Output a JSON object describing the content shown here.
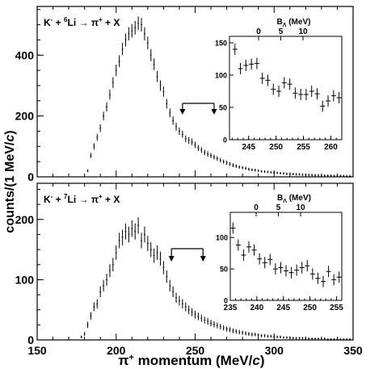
{
  "figure": {
    "ylabel_main": "counts/(1 MeV/",
    "ylabel_main_italic": "c",
    "ylabel_main_end": ")",
    "xlabel_pre": "π",
    "xlabel_sup": "+",
    "xlabel_mid": " momentum (MeV/",
    "xlabel_italic": "c",
    "xlabel_end": ")"
  },
  "chart_data": [
    {
      "type": "scatter",
      "panel": "top",
      "reaction": {
        "k": "K",
        "k_sup": "-",
        "plus": " + ",
        "a": "6",
        "nucleus": "Li",
        "arrow": " → ",
        "pi": "π",
        "pi_sup": "+",
        "end": " + X"
      },
      "xlim": [
        150,
        350
      ],
      "ylim": [
        0,
        560
      ],
      "xticks": [
        150,
        200,
        250,
        300,
        350
      ],
      "yticks": [
        0,
        200,
        400
      ],
      "x": [
        182,
        184,
        186,
        188,
        190,
        192,
        194,
        196,
        198,
        200,
        202,
        204,
        206,
        208,
        210,
        212,
        214,
        216,
        218,
        220,
        222,
        224,
        226,
        228,
        230,
        232,
        234,
        236,
        238,
        240,
        242,
        244,
        246,
        248,
        250,
        252,
        254,
        256,
        258,
        260,
        262,
        264,
        266,
        268,
        270,
        272,
        274,
        276,
        278,
        280,
        282,
        284,
        286,
        288,
        290,
        292,
        294,
        296,
        298,
        300,
        302,
        304,
        306,
        308,
        310,
        312,
        314,
        316,
        318,
        320,
        322,
        324,
        326,
        328,
        330,
        332,
        334,
        336,
        338,
        340,
        342,
        344,
        346,
        348
      ],
      "values": [
        20,
        70,
        100,
        130,
        160,
        200,
        230,
        270,
        310,
        350,
        380,
        420,
        450,
        470,
        480,
        490,
        505,
        500,
        470,
        440,
        400,
        370,
        330,
        300,
        280,
        240,
        210,
        185,
        165,
        150,
        140,
        125,
        120,
        115,
        105,
        95,
        88,
        80,
        75,
        70,
        65,
        60,
        55,
        50,
        46,
        42,
        38,
        35,
        32,
        30,
        28,
        25,
        23,
        22,
        20,
        18,
        17,
        16,
        15,
        14,
        13,
        12,
        11,
        10,
        10,
        9,
        8,
        8,
        7,
        7,
        6,
        6,
        5,
        5,
        5,
        4,
        4,
        4,
        3,
        3,
        3,
        3,
        2,
        2
      ],
      "window_arrow": {
        "from": 242,
        "to": 262
      },
      "inset": {
        "type": "scatter",
        "top_label": "B",
        "top_label_sub": "Λ",
        "top_label_end": " (MeV)",
        "top_ticks": [
          0,
          5,
          10
        ],
        "xlim": [
          241.5,
          262
        ],
        "ylim": [
          0,
          160
        ],
        "xticks": [
          245,
          250,
          255,
          260
        ],
        "yticks": [
          0,
          50,
          100,
          150
        ],
        "x": [
          242.5,
          243.5,
          244.5,
          245.5,
          246.5,
          247.5,
          248.5,
          249.5,
          250.5,
          251.5,
          252.5,
          253.5,
          254.5,
          255.5,
          256.5,
          257.5,
          258.5,
          259.5,
          260.5,
          261.5
        ],
        "values": [
          140,
          110,
          115,
          117,
          118,
          95,
          92,
          78,
          75,
          88,
          86,
          72,
          70,
          70,
          75,
          71,
          52,
          60,
          68,
          65
        ]
      }
    },
    {
      "type": "scatter",
      "panel": "bottom",
      "reaction": {
        "k": "K",
        "k_sup": "-",
        "plus": " + ",
        "a": "7",
        "nucleus": "Li",
        "arrow": " → ",
        "pi": "π",
        "pi_sup": "+",
        "end": " + X"
      },
      "xlim": [
        150,
        350
      ],
      "ylim": [
        0,
        260
      ],
      "xticks": [
        150,
        200,
        250,
        300,
        350
      ],
      "yticks": [
        0,
        100,
        200
      ],
      "x": [
        178,
        180,
        182,
        184,
        186,
        188,
        190,
        192,
        194,
        196,
        198,
        200,
        202,
        204,
        206,
        208,
        210,
        212,
        214,
        216,
        218,
        220,
        222,
        224,
        226,
        228,
        230,
        232,
        234,
        236,
        238,
        240,
        242,
        244,
        246,
        248,
        250,
        252,
        254,
        256,
        258,
        260,
        262,
        264,
        266,
        268,
        270,
        272,
        274,
        276,
        278,
        280,
        282,
        284,
        286,
        288,
        290,
        292,
        294,
        296,
        298,
        300,
        302,
        304,
        306,
        308,
        310,
        312,
        314,
        316,
        318,
        320,
        322,
        324,
        326,
        328,
        330,
        332,
        334,
        336,
        338,
        340,
        342,
        344,
        346,
        348
      ],
      "values": [
        5,
        10,
        25,
        40,
        55,
        60,
        80,
        90,
        100,
        115,
        125,
        145,
        165,
        170,
        180,
        175,
        185,
        180,
        190,
        165,
        175,
        160,
        150,
        140,
        145,
        135,
        120,
        105,
        90,
        80,
        70,
        65,
        60,
        55,
        50,
        46,
        42,
        39,
        36,
        33,
        31,
        28,
        26,
        24,
        22,
        20,
        18,
        17,
        15,
        14,
        13,
        12,
        11,
        10,
        9,
        9,
        8,
        7,
        7,
        6,
        6,
        5,
        5,
        5,
        4,
        4,
        4,
        3,
        3,
        3,
        3,
        2,
        2,
        2,
        2,
        2,
        2,
        2,
        1,
        1,
        1,
        1,
        1,
        1,
        1,
        1
      ],
      "window_arrow": {
        "from": 235,
        "to": 255
      },
      "inset": {
        "type": "scatter",
        "top_label": "B",
        "top_label_sub": "Λ",
        "top_label_end": " (MeV)",
        "top_ticks": [
          0,
          5,
          10
        ],
        "xlim": [
          235,
          256
        ],
        "ylim": [
          0,
          140
        ],
        "xticks": [
          235,
          240,
          245,
          250,
          255
        ],
        "yticks": [
          0,
          50,
          100
        ],
        "x": [
          235.5,
          236.5,
          237.5,
          238.5,
          239.5,
          240.5,
          241.5,
          242.5,
          243.5,
          244.5,
          245.5,
          246.5,
          247.5,
          248.5,
          249.5,
          250.5,
          251.5,
          252.5,
          253.5,
          254.5,
          255.5
        ],
        "values": [
          115,
          88,
          72,
          85,
          80,
          66,
          60,
          65,
          50,
          52,
          47,
          44,
          48,
          52,
          55,
          42,
          35,
          30,
          46,
          33,
          37
        ]
      }
    }
  ]
}
